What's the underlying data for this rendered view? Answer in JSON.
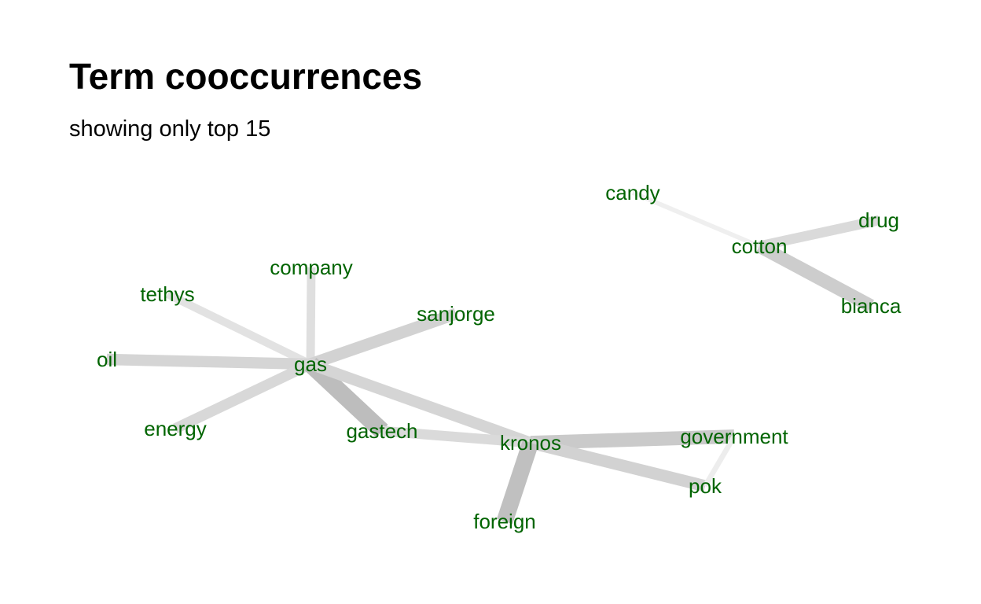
{
  "title": "Term cooccurrences",
  "subtitle": "showing only top 15",
  "colors": {
    "node_text": "#006400",
    "edge_light": "#f2f2f2",
    "edge_dark": "#bdbdbd"
  },
  "graph": {
    "nodes": [
      {
        "id": "candy",
        "label": "candy"
      },
      {
        "id": "drug",
        "label": "drug"
      },
      {
        "id": "cotton",
        "label": "cotton"
      },
      {
        "id": "bianca",
        "label": "bianca"
      },
      {
        "id": "company",
        "label": "company"
      },
      {
        "id": "tethys",
        "label": "tethys"
      },
      {
        "id": "sanjorge",
        "label": "sanjorge"
      },
      {
        "id": "oil",
        "label": "oil"
      },
      {
        "id": "gas",
        "label": "gas"
      },
      {
        "id": "energy",
        "label": "energy"
      },
      {
        "id": "gastech",
        "label": "gastech"
      },
      {
        "id": "kronos",
        "label": "kronos"
      },
      {
        "id": "government",
        "label": "government"
      },
      {
        "id": "pok",
        "label": "pok"
      },
      {
        "id": "foreign",
        "label": "foreign"
      }
    ],
    "edges": [
      {
        "source": "candy",
        "target": "cotton",
        "weight": 0.05
      },
      {
        "source": "cotton",
        "target": "drug",
        "weight": 0.45
      },
      {
        "source": "cotton",
        "target": "bianca",
        "weight": 0.7
      },
      {
        "source": "gas",
        "target": "company",
        "weight": 0.35
      },
      {
        "source": "gas",
        "target": "tethys",
        "weight": 0.3
      },
      {
        "source": "gas",
        "target": "sanjorge",
        "weight": 0.6
      },
      {
        "source": "gas",
        "target": "oil",
        "weight": 0.55
      },
      {
        "source": "gas",
        "target": "energy",
        "weight": 0.5
      },
      {
        "source": "gas",
        "target": "gastech",
        "weight": 1.0
      },
      {
        "source": "gas",
        "target": "kronos",
        "weight": 0.55
      },
      {
        "source": "gastech",
        "target": "kronos",
        "weight": 0.45
      },
      {
        "source": "kronos",
        "target": "government",
        "weight": 0.75
      },
      {
        "source": "kronos",
        "target": "pok",
        "weight": 0.6
      },
      {
        "source": "kronos",
        "target": "foreign",
        "weight": 0.95
      },
      {
        "source": "government",
        "target": "pok",
        "weight": 0.1
      }
    ]
  }
}
